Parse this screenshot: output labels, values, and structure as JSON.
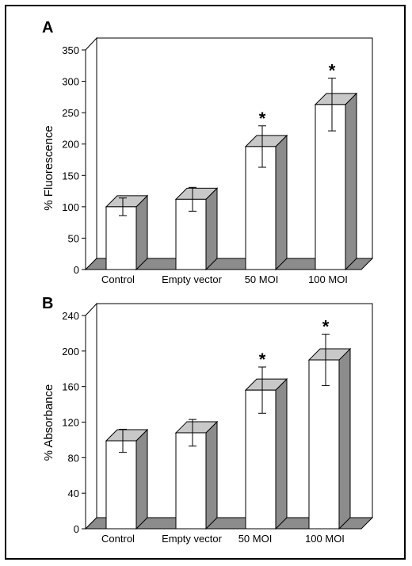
{
  "colors": {
    "bar_face": "#ffffff",
    "bar_side": "#8c8c8c",
    "bar_top": "#c8c8c8",
    "floor": "#8c8c8c",
    "ink": "#000000"
  },
  "chart_data": [
    {
      "type": "bar",
      "panel_label": "A",
      "title": "",
      "xlabel": "",
      "ylabel": "% Fluorescence",
      "categories": [
        "Control",
        "Empty vector",
        "50 MOI",
        "100 MOI"
      ],
      "series": [
        {
          "values": [
            100,
            112,
            196,
            263
          ]
        }
      ],
      "errors": [
        14,
        19,
        33,
        42
      ],
      "significance": [
        "",
        "",
        "*",
        "*"
      ],
      "ylim": [
        0,
        350
      ],
      "yticks": [
        "0",
        "50",
        "100",
        "150",
        "200",
        "250",
        "300",
        "350"
      ],
      "grid": false,
      "style": "3d"
    },
    {
      "type": "bar",
      "panel_label": "B",
      "title": "",
      "xlabel": "",
      "ylabel": "% Absorbance",
      "categories": [
        "Control",
        "Empty vector",
        "50 MOI",
        "100 MOI"
      ],
      "series": [
        {
          "values": [
            99,
            108,
            156,
            190
          ]
        }
      ],
      "errors": [
        13,
        15,
        26,
        29
      ],
      "significance": [
        "",
        "",
        "*",
        "*"
      ],
      "ylim": [
        0,
        240
      ],
      "yticks": [
        "0",
        "40",
        "80",
        "120",
        "160",
        "200",
        "240"
      ],
      "grid": false,
      "style": "3d"
    }
  ]
}
